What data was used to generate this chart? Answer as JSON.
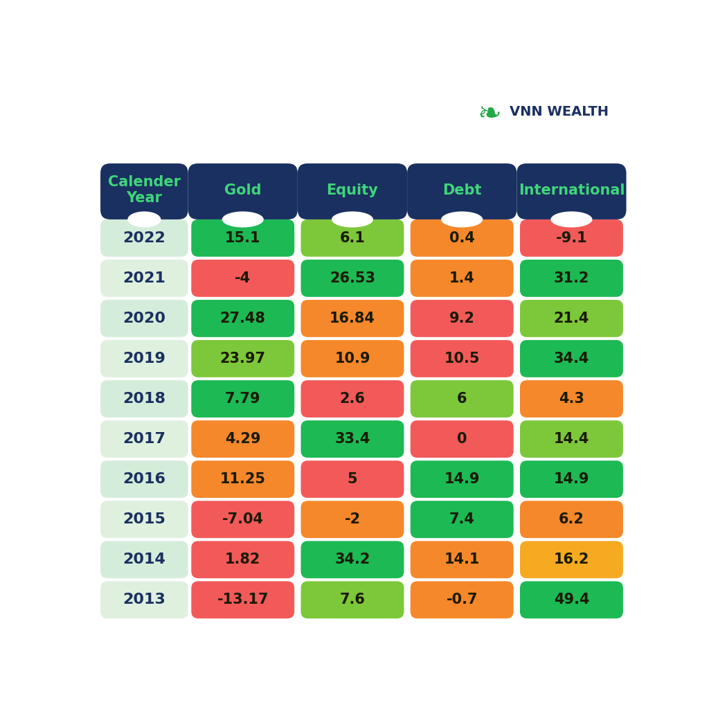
{
  "headers": [
    "Calender\nYear",
    "Gold",
    "Equity",
    "Debt",
    "International"
  ],
  "years": [
    "2022",
    "2021",
    "2020",
    "2019",
    "2018",
    "2017",
    "2016",
    "2015",
    "2014",
    "2013"
  ],
  "data": {
    "Gold": [
      "15.1",
      "-4",
      "27.48",
      "23.97",
      "7.79",
      "4.29",
      "11.25",
      "-7.04",
      "1.82",
      "-13.17"
    ],
    "Equity": [
      "6.1",
      "26.53",
      "16.84",
      "10.9",
      "2.6",
      "33.4",
      "5",
      "-2",
      "34.2",
      "7.6"
    ],
    "Debt": [
      "0.4",
      "1.4",
      "9.2",
      "10.5",
      "6",
      "0",
      "14.9",
      "7.4",
      "14.1",
      "-0.7"
    ],
    "International": [
      "-9.1",
      "31.2",
      "21.4",
      "34.4",
      "4.3",
      "14.4",
      "14.9",
      "6.2",
      "16.2",
      "49.4"
    ]
  },
  "cell_colors": {
    "Gold": [
      "#1db954",
      "#f25a5a",
      "#1db954",
      "#7dc83a",
      "#1db954",
      "#f5882a",
      "#f5882a",
      "#f25a5a",
      "#f25a5a",
      "#f25a5a"
    ],
    "Equity": [
      "#7dc83a",
      "#1db954",
      "#f5882a",
      "#f5882a",
      "#f25a5a",
      "#1db954",
      "#f25a5a",
      "#f5882a",
      "#1db954",
      "#7dc83a"
    ],
    "Debt": [
      "#f5882a",
      "#f5882a",
      "#f25a5a",
      "#f25a5a",
      "#7dc83a",
      "#f25a5a",
      "#1db954",
      "#1db954",
      "#f5882a",
      "#f5882a"
    ],
    "International": [
      "#f25a5a",
      "#1db954",
      "#7dc83a",
      "#1db954",
      "#f5882a",
      "#7dc83a",
      "#1db954",
      "#f5882a",
      "#f5aa22",
      "#1db954"
    ]
  },
  "header_bg": "#1a3060",
  "header_text": "#3fd67a",
  "bg_color": "#ffffff",
  "year_text_color": "#1a3060",
  "cell_text_color": "#1a1a00",
  "logo_text_color": "#1a3060",
  "row_bg_even": "#d4edda",
  "row_bg_odd": "#dff0df",
  "col_widths_ratio": [
    1.6,
    2.0,
    2.0,
    2.0,
    2.0
  ],
  "header_fontsize": 15,
  "cell_fontsize": 15,
  "year_fontsize": 16
}
